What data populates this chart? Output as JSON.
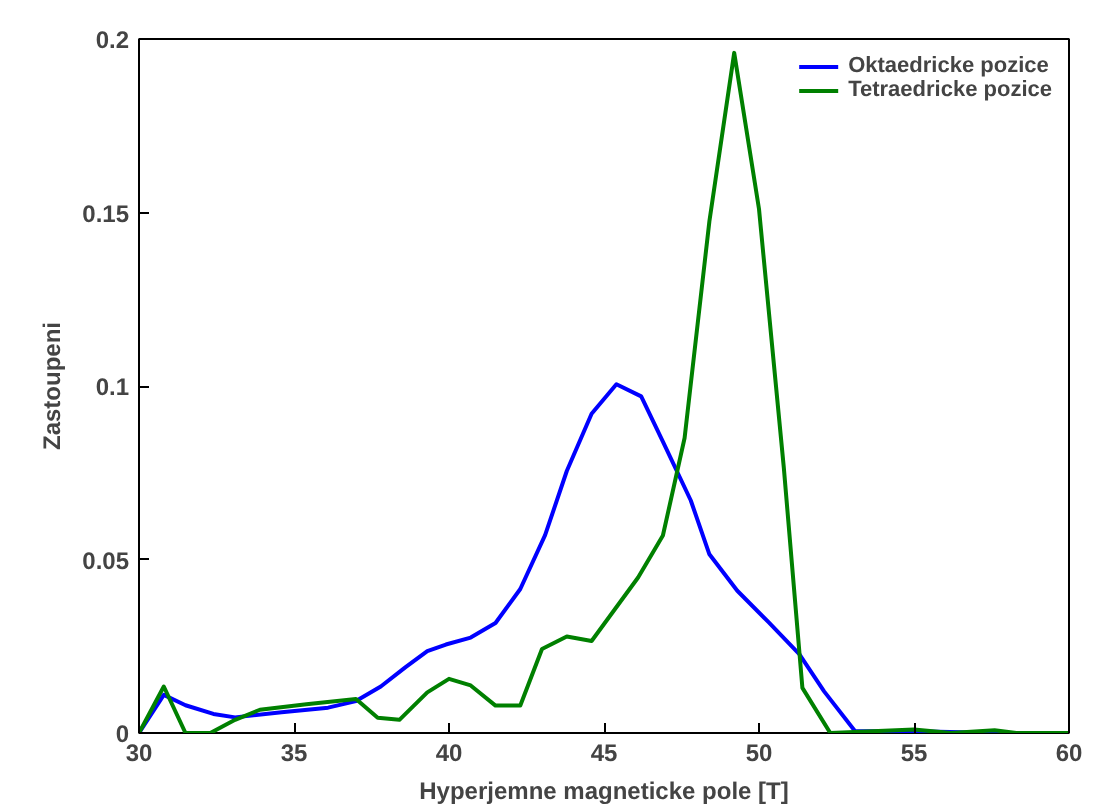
{
  "chart_data": {
    "type": "line",
    "xlabel": "Hyperjemne magneticke pole [T]",
    "ylabel": "Zastoupeni",
    "xlim": [
      30,
      60
    ],
    "ylim": [
      0,
      0.2
    ],
    "xticks": [
      30,
      35,
      40,
      45,
      50,
      55,
      60
    ],
    "yticks": [
      0,
      0.05,
      0.1,
      0.15,
      0.2
    ],
    "grid": false,
    "legend": "top right",
    "marker": "none",
    "line_style": "solid",
    "series": [
      {
        "name": "Oktaedricke pozice",
        "color": "#0000ff",
        "x": [
          30,
          30.8,
          31.5,
          32.4,
          33.1,
          34.6,
          36.1,
          37.0,
          37.8,
          38.6,
          39.3,
          39.9,
          40.7,
          41.5,
          42.3,
          43.1,
          43.8,
          44.6,
          45.4,
          46.2,
          46.9,
          47.8,
          48.4,
          49.3,
          50.3,
          51.3,
          52.1,
          53.1,
          55,
          57.7,
          60
        ],
        "values": [
          0,
          0.011,
          0.008,
          0.0055,
          0.0045,
          0.006,
          0.0073,
          0.0092,
          0.0134,
          0.019,
          0.0236,
          0.0255,
          0.0275,
          0.0317,
          0.0415,
          0.057,
          0.0755,
          0.092,
          0.1005,
          0.097,
          0.084,
          0.067,
          0.0515,
          0.041,
          0.032,
          0.0227,
          0.012,
          0.0005,
          0.0005,
          0,
          0
        ]
      },
      {
        "name": "Tetraedricke pozice",
        "color": "#008000",
        "x": [
          30,
          30.8,
          31.5,
          32.3,
          33.1,
          33.9,
          35.4,
          37.0,
          37.7,
          38.4,
          39.3,
          40.0,
          40.7,
          41.5,
          42.3,
          43.0,
          43.8,
          44.6,
          46.1,
          46.9,
          47.6,
          48.4,
          49.2,
          50.0,
          50.8,
          51.4,
          52.3,
          55,
          56.2,
          57.6,
          58.3,
          60
        ],
        "values": [
          0,
          0.0134,
          0,
          0,
          0.0038,
          0.0067,
          0.0083,
          0.0098,
          0.0044,
          0.0038,
          0.0117,
          0.0156,
          0.0137,
          0.0079,
          0.0079,
          0.0242,
          0.0278,
          0.0265,
          0.0448,
          0.0569,
          0.085,
          0.1475,
          0.196,
          0.151,
          0.0765,
          0.013,
          0,
          0.001,
          0,
          0.0008,
          0,
          0
        ]
      }
    ]
  }
}
